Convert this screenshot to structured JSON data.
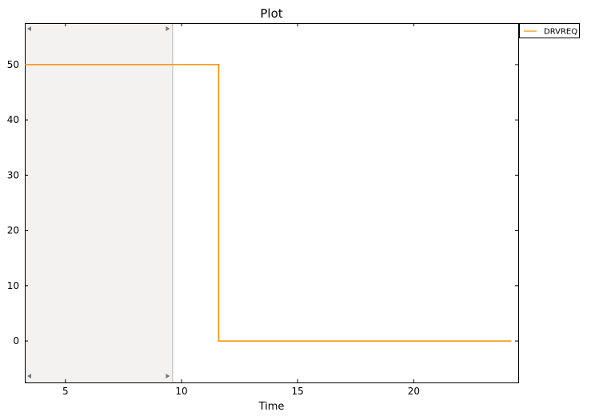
{
  "chart_data": {
    "type": "line",
    "title": "Plot",
    "xlabel": "Time",
    "ylabel": "",
    "xlim": [
      3.25,
      24.5
    ],
    "ylim": [
      -7.5,
      57.5
    ],
    "xticks": [
      5,
      10,
      15,
      20
    ],
    "yticks": [
      0,
      10,
      20,
      30,
      40,
      50
    ],
    "grid": false,
    "legend_position": "outside-top-right",
    "series": [
      {
        "name": "DRVREQ",
        "color": "#ff8c00",
        "step": "post",
        "x": [
          3.25,
          11.6,
          24.2
        ],
        "y": [
          50,
          0,
          0
        ]
      }
    ],
    "highlight_region": {
      "x_range": [
        3.25,
        9.6
      ],
      "color": "#f3f2f0",
      "edge_color": "#b5b5b5"
    }
  }
}
